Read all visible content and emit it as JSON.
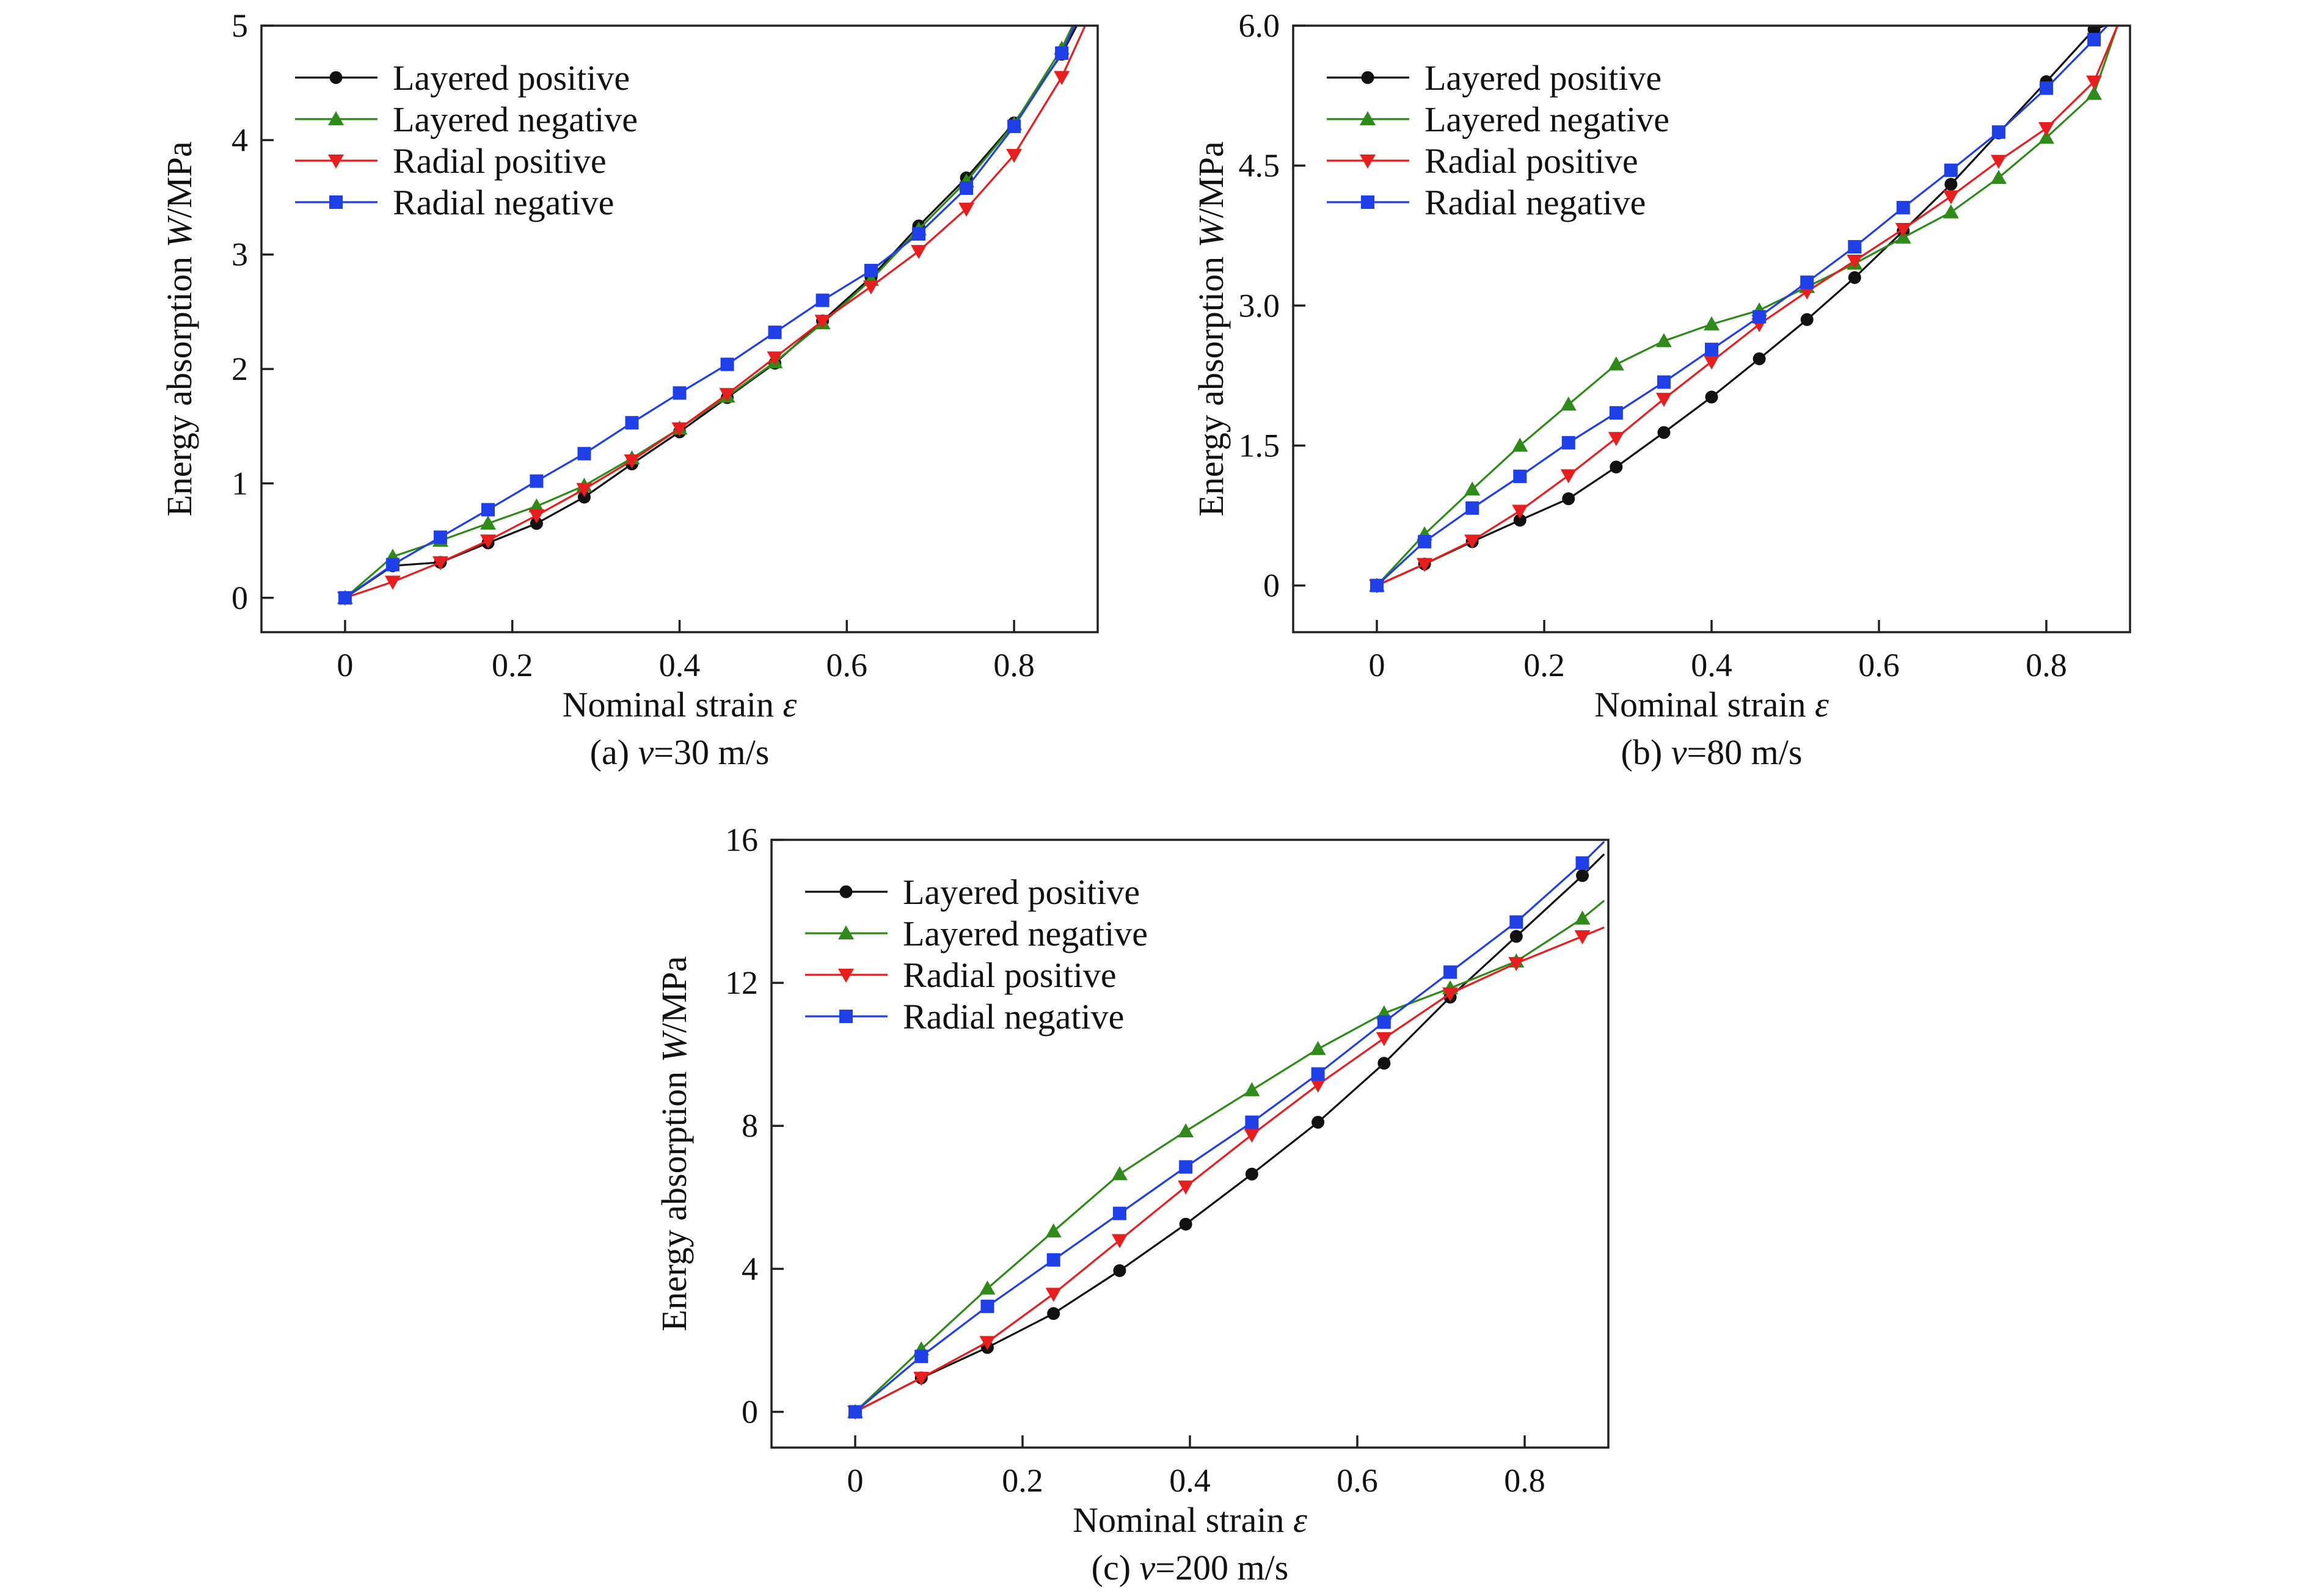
{
  "chart_data": [
    {
      "type": "line",
      "panel_id": "a",
      "caption_prefix": "(a) ",
      "caption_var": "v",
      "caption_rest": "=30 m/s",
      "xlabel_text": "Nominal strain ",
      "xlabel_var": "ε",
      "ylabel_text": "Energy absorption ",
      "ylabel_var": "W",
      "ylabel_unit": "/MPa",
      "xlim": [
        -0.1,
        0.9
      ],
      "ylim": [
        -0.3,
        5
      ],
      "xticks": [
        0,
        0.2,
        0.4,
        0.6,
        0.8
      ],
      "xtick_labels": [
        "0",
        "0.2",
        "0.4",
        "0.6",
        "0.8"
      ],
      "yticks": [
        0,
        1,
        2,
        3,
        4,
        5
      ],
      "ytick_labels": [
        "0",
        "1",
        "2",
        "3",
        "4",
        "5"
      ],
      "legend_position": "top-left",
      "grid": false,
      "series": [
        {
          "name": "Layered positive",
          "color": "#111111",
          "marker": "circle",
          "x": [
            0,
            0.057,
            0.114,
            0.171,
            0.229,
            0.286,
            0.343,
            0.4,
            0.457,
            0.514,
            0.571,
            0.629,
            0.686,
            0.743,
            0.8,
            0.857
          ],
          "y": [
            0,
            0.28,
            0.31,
            0.48,
            0.65,
            0.88,
            1.17,
            1.45,
            1.75,
            2.05,
            2.42,
            2.8,
            3.25,
            3.67,
            4.15,
            4.75
          ],
          "x_end": 0.875,
          "y_end": 5.0
        },
        {
          "name": "Layered negative",
          "color": "#2e8b1a",
          "marker": "triangle-up",
          "x": [
            0,
            0.057,
            0.114,
            0.171,
            0.229,
            0.286,
            0.343,
            0.4,
            0.457,
            0.514,
            0.571,
            0.629,
            0.686,
            0.743,
            0.8,
            0.857
          ],
          "y": [
            0,
            0.36,
            0.5,
            0.65,
            0.8,
            0.98,
            1.22,
            1.48,
            1.76,
            2.06,
            2.4,
            2.78,
            3.22,
            3.64,
            4.14,
            4.8
          ],
          "x_end": 0.87,
          "y_end": 5.0
        },
        {
          "name": "Radial positive",
          "color": "#e81e1e",
          "marker": "triangle-down",
          "x": [
            0,
            0.057,
            0.114,
            0.171,
            0.229,
            0.286,
            0.343,
            0.4,
            0.457,
            0.514,
            0.571,
            0.629,
            0.686,
            0.743,
            0.8,
            0.857
          ],
          "y": [
            0,
            0.14,
            0.31,
            0.5,
            0.72,
            0.95,
            1.2,
            1.48,
            1.78,
            2.1,
            2.42,
            2.72,
            3.03,
            3.4,
            3.87,
            4.55
          ],
          "x_end": 0.885,
          "y_end": 5.0
        },
        {
          "name": "Radial negative",
          "color": "#1f3fe8",
          "marker": "square",
          "x": [
            0,
            0.057,
            0.114,
            0.171,
            0.229,
            0.286,
            0.343,
            0.4,
            0.457,
            0.514,
            0.571,
            0.629,
            0.686,
            0.743,
            0.8,
            0.857
          ],
          "y": [
            0,
            0.29,
            0.53,
            0.77,
            1.02,
            1.26,
            1.53,
            1.79,
            2.04,
            2.32,
            2.6,
            2.86,
            3.18,
            3.58,
            4.12,
            4.76
          ],
          "x_end": 0.872,
          "y_end": 5.0
        }
      ]
    },
    {
      "type": "line",
      "panel_id": "b",
      "caption_prefix": "(b) ",
      "caption_var": "v",
      "caption_rest": "=80 m/s",
      "xlabel_text": "Nominal strain ",
      "xlabel_var": "ε",
      "ylabel_text": "Energy absorption ",
      "ylabel_var": "W",
      "ylabel_unit": "/MPa",
      "xlim": [
        -0.1,
        0.9
      ],
      "ylim": [
        -0.5,
        6.0
      ],
      "xticks": [
        0,
        0.2,
        0.4,
        0.6,
        0.8
      ],
      "xtick_labels": [
        "0",
        "0.2",
        "0.4",
        "0.6",
        "0.8"
      ],
      "yticks": [
        0,
        1.5,
        3.0,
        4.5,
        6.0
      ],
      "ytick_labels": [
        "0",
        "1.5",
        "3.0",
        "4.5",
        "6.0"
      ],
      "legend_position": "top-left",
      "grid": false,
      "series": [
        {
          "name": "Layered positive",
          "color": "#111111",
          "marker": "circle",
          "x": [
            0,
            0.057,
            0.114,
            0.171,
            0.229,
            0.286,
            0.343,
            0.4,
            0.457,
            0.514,
            0.571,
            0.629,
            0.686,
            0.743,
            0.8,
            0.857
          ],
          "y": [
            0,
            0.23,
            0.47,
            0.7,
            0.93,
            1.27,
            1.64,
            2.02,
            2.43,
            2.85,
            3.3,
            3.8,
            4.3,
            4.85,
            5.4,
            5.96
          ],
          "x_end": 0.87,
          "y_end": 6.0
        },
        {
          "name": "Layered negative",
          "color": "#2e8b1a",
          "marker": "triangle-up",
          "x": [
            0,
            0.057,
            0.114,
            0.171,
            0.229,
            0.286,
            0.343,
            0.4,
            0.457,
            0.514,
            0.571,
            0.629,
            0.686,
            0.743,
            0.8,
            0.857
          ],
          "y": [
            0,
            0.55,
            1.03,
            1.5,
            1.94,
            2.37,
            2.62,
            2.8,
            2.95,
            3.2,
            3.45,
            3.73,
            4.0,
            4.37,
            4.8,
            5.27
          ],
          "x_end": 0.885,
          "y_end": 6.0
        },
        {
          "name": "Radial positive",
          "color": "#e81e1e",
          "marker": "triangle-down",
          "x": [
            0,
            0.057,
            0.114,
            0.171,
            0.229,
            0.286,
            0.343,
            0.4,
            0.457,
            0.514,
            0.571,
            0.629,
            0.686,
            0.743,
            0.8,
            0.857
          ],
          "y": [
            0,
            0.23,
            0.48,
            0.8,
            1.18,
            1.58,
            2.0,
            2.4,
            2.8,
            3.15,
            3.48,
            3.82,
            4.17,
            4.55,
            4.9,
            5.4
          ],
          "x_end": 0.885,
          "y_end": 6.0
        },
        {
          "name": "Radial negative",
          "color": "#1f3fe8",
          "marker": "square",
          "x": [
            0,
            0.057,
            0.114,
            0.171,
            0.229,
            0.286,
            0.343,
            0.4,
            0.457,
            0.514,
            0.571,
            0.629,
            0.686,
            0.743,
            0.8,
            0.857
          ],
          "y": [
            0,
            0.47,
            0.83,
            1.17,
            1.53,
            1.85,
            2.18,
            2.53,
            2.88,
            3.25,
            3.63,
            4.05,
            4.45,
            4.86,
            5.33,
            5.85
          ],
          "x_end": 0.873,
          "y_end": 6.0
        }
      ]
    },
    {
      "type": "line",
      "panel_id": "c",
      "caption_prefix": "(c) ",
      "caption_var": "v",
      "caption_rest": "=200 m/s",
      "xlabel_text": "Nominal strain ",
      "xlabel_var": "ε",
      "ylabel_text": "Energy absorption  ",
      "ylabel_var": "W",
      "ylabel_unit": "/MPa",
      "xlim": [
        -0.1,
        0.9
      ],
      "ylim": [
        -1.0,
        16
      ],
      "xticks": [
        0,
        0.2,
        0.4,
        0.6,
        0.8
      ],
      "xtick_labels": [
        "0",
        "0.2",
        "0.4",
        "0.6",
        "0.8"
      ],
      "yticks": [
        0,
        4,
        8,
        12,
        16
      ],
      "ytick_labels": [
        "0",
        "4",
        "8",
        "12",
        "16"
      ],
      "legend_position": "top-left",
      "grid": false,
      "series": [
        {
          "name": "Layered positive",
          "color": "#111111",
          "marker": "circle",
          "x": [
            0,
            0.079,
            0.158,
            0.237,
            0.316,
            0.395,
            0.474,
            0.553,
            0.632,
            0.711,
            0.79,
            0.869
          ],
          "y": [
            0,
            0.95,
            1.8,
            2.75,
            3.95,
            5.25,
            6.65,
            8.1,
            9.75,
            11.6,
            13.3,
            15.0
          ],
          "x_end": 0.895,
          "y_end": 15.6
        },
        {
          "name": "Layered negative",
          "color": "#2e8b1a",
          "marker": "triangle-up",
          "x": [
            0,
            0.079,
            0.158,
            0.237,
            0.316,
            0.395,
            0.474,
            0.553,
            0.632,
            0.711,
            0.79,
            0.869
          ],
          "y": [
            0,
            1.75,
            3.45,
            5.05,
            6.65,
            7.85,
            9.0,
            10.15,
            11.15,
            11.85,
            12.6,
            13.8
          ],
          "x_end": 0.895,
          "y_end": 14.3
        },
        {
          "name": "Radial positive",
          "color": "#e81e1e",
          "marker": "triangle-down",
          "x": [
            0,
            0.079,
            0.158,
            0.237,
            0.316,
            0.395,
            0.474,
            0.553,
            0.632,
            0.711,
            0.79,
            0.869
          ],
          "y": [
            0,
            0.95,
            1.95,
            3.3,
            4.8,
            6.3,
            7.75,
            9.15,
            10.45,
            11.7,
            12.55,
            13.3
          ],
          "x_end": 0.895,
          "y_end": 13.55
        },
        {
          "name": "Radial negative",
          "color": "#1f3fe8",
          "marker": "square",
          "x": [
            0,
            0.079,
            0.158,
            0.237,
            0.316,
            0.395,
            0.474,
            0.553,
            0.632,
            0.711,
            0.79,
            0.869
          ],
          "y": [
            0,
            1.55,
            2.95,
            4.25,
            5.55,
            6.85,
            8.1,
            9.45,
            10.9,
            12.3,
            13.7,
            15.35
          ],
          "x_end": 0.895,
          "y_end": 15.95
        }
      ]
    }
  ]
}
